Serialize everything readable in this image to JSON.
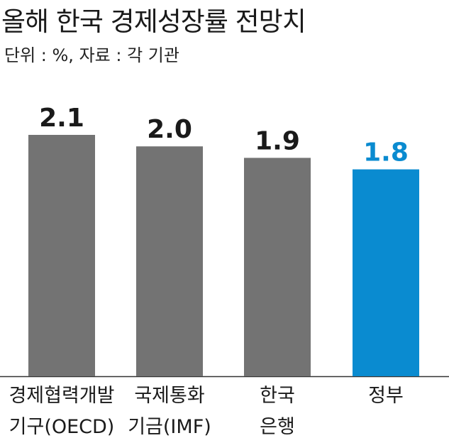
{
  "title": "올해 한국 경제성장률 전망치",
  "subtitle": "단위 : %, 자료 : 각 기관",
  "colors": {
    "default_bar": "#737373",
    "highlight_bar": "#0a8bd0",
    "value_text": "#1a1a1a",
    "highlight_text": "#0a8bd0",
    "baseline": "#333333"
  },
  "chart_data": {
    "type": "bar",
    "title": "올해 한국 경제성장률 전망치",
    "subtitle": "단위 : %, 자료 : 각 기관",
    "xlabel": "",
    "ylabel": "",
    "categories": [
      [
        "경제협력개발",
        "기구(OECD)"
      ],
      [
        "국제통화",
        "기금(IMF)"
      ],
      [
        "한국",
        "은행"
      ],
      [
        "정부"
      ]
    ],
    "values": [
      2.1,
      2.0,
      1.9,
      1.8
    ],
    "value_labels": [
      "2.1",
      "2.0",
      "1.9",
      "1.8"
    ],
    "highlight_index": 3,
    "ylim": [
      0,
      2.1
    ],
    "grid": false,
    "legend": "none"
  }
}
